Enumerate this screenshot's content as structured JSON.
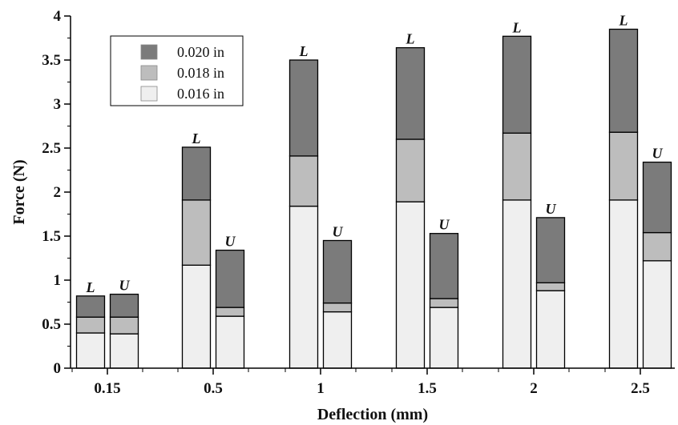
{
  "chart_data": {
    "type": "bar",
    "stacked": true,
    "xlabel": "Deflection (mm)",
    "ylabel": "Force (N)",
    "ylim": [
      0,
      4
    ],
    "yticks": [
      0,
      0.5,
      1,
      1.5,
      2,
      2.5,
      3,
      3.5,
      4
    ],
    "ytick_labels": [
      "0",
      "0.5",
      "1",
      "1.5",
      "2",
      "2.5",
      "3",
      "3.5",
      "4"
    ],
    "categories": [
      "0.15",
      "0.5",
      "1",
      "1.5",
      "2",
      "2.5"
    ],
    "bar_labels": [
      "L",
      "U"
    ],
    "legend_position": "top-left",
    "grid": false,
    "series": [
      {
        "name": "0.016 in",
        "color": "#efefef",
        "values": {
          "L": [
            0.4,
            1.17,
            1.84,
            1.89,
            1.91,
            1.91
          ],
          "U": [
            0.39,
            0.59,
            0.64,
            0.69,
            0.88,
            1.22
          ]
        }
      },
      {
        "name": "0.018 in",
        "color": "#bdbdbd",
        "values": {
          "L": [
            0.58,
            1.91,
            2.41,
            2.6,
            2.67,
            2.68
          ],
          "U": [
            0.58,
            0.69,
            0.74,
            0.79,
            0.97,
            1.54
          ]
        }
      },
      {
        "name": "0.020 in",
        "color": "#7b7b7b",
        "values": {
          "L": [
            0.82,
            2.51,
            3.5,
            3.64,
            3.77,
            3.85
          ],
          "U": [
            0.84,
            1.34,
            1.45,
            1.53,
            1.71,
            2.34
          ]
        }
      }
    ],
    "legend": [
      "0.020 in",
      "0.018 in",
      "0.016 in"
    ]
  }
}
